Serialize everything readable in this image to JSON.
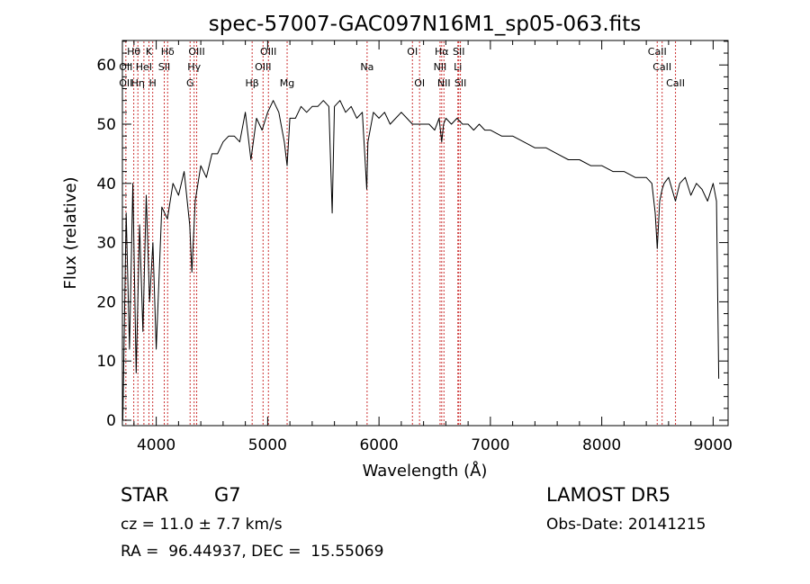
{
  "chart_data": {
    "type": "line",
    "title": "spec-57007-GAC097N16M1_sp05-063.fits",
    "xlabel": "Wavelength (Å)",
    "ylabel": "Flux (relative)",
    "xlim": [
      3700,
      9100
    ],
    "ylim": [
      0,
      65
    ],
    "xticks": [
      4000,
      5000,
      6000,
      7000,
      8000,
      9000
    ],
    "yticks": [
      0,
      10,
      20,
      30,
      40,
      50,
      60
    ],
    "grid": false,
    "series": [
      {
        "x": [
          3700,
          3730,
          3760,
          3790,
          3820,
          3850,
          3880,
          3910,
          3940,
          3970,
          4000,
          4050,
          4100,
          4150,
          4200,
          4250,
          4300,
          4320,
          4350,
          4400,
          4450,
          4500,
          4550,
          4600,
          4650,
          4700,
          4750,
          4800,
          4850,
          4900,
          4950,
          5000,
          5050,
          5100,
          5150,
          5175,
          5200,
          5250,
          5300,
          5350,
          5400,
          5450,
          5500,
          5550,
          5580,
          5600,
          5650,
          5700,
          5750,
          5800,
          5850,
          5890,
          5900,
          5950,
          6000,
          6050,
          6100,
          6150,
          6200,
          6250,
          6300,
          6350,
          6400,
          6450,
          6500,
          6540,
          6563,
          6580,
          6600,
          6650,
          6700,
          6750,
          6800,
          6850,
          6900,
          6950,
          7000,
          7100,
          7200,
          7300,
          7400,
          7500,
          7600,
          7700,
          7800,
          7900,
          8000,
          8100,
          8200,
          8300,
          8400,
          8450,
          8480,
          8498,
          8520,
          8542,
          8560,
          8600,
          8662,
          8700,
          8750,
          8800,
          8850,
          8900,
          8950,
          9000,
          9030,
          9050
        ],
        "y": [
          0,
          35,
          12,
          40,
          8,
          33,
          15,
          38,
          20,
          30,
          12,
          36,
          34,
          40,
          38,
          42,
          33,
          25,
          37,
          43,
          41,
          45,
          45,
          47,
          48,
          48,
          47,
          52,
          44,
          51,
          49,
          52,
          54,
          52,
          47,
          43,
          51,
          51,
          53,
          52,
          53,
          53,
          54,
          53,
          35,
          53,
          54,
          52,
          53,
          51,
          52,
          39,
          47,
          52,
          51,
          52,
          50,
          51,
          52,
          51,
          50,
          50,
          50,
          50,
          49,
          51,
          47,
          50,
          51,
          50,
          51,
          50,
          50,
          49,
          50,
          49,
          49,
          48,
          48,
          47,
          46,
          46,
          45,
          44,
          44,
          43,
          43,
          42,
          42,
          41,
          41,
          40,
          35,
          29,
          37,
          39,
          40,
          41,
          37,
          40,
          41,
          38,
          40,
          39,
          37,
          40,
          37,
          7
        ]
      }
    ],
    "line_labels": [
      {
        "label": "Hθ",
        "x": 3798,
        "row": 0
      },
      {
        "label": "K",
        "x": 3934,
        "row": 0
      },
      {
        "label": "Hδ",
        "x": 4102,
        "row": 0
      },
      {
        "label": "OIII",
        "x": 4363,
        "row": 0
      },
      {
        "label": "OIII",
        "x": 5007,
        "row": 0
      },
      {
        "label": "OI",
        "x": 6300,
        "row": 0
      },
      {
        "label": "Hα",
        "x": 6563,
        "row": 0
      },
      {
        "label": "SII",
        "x": 6716,
        "row": 0
      },
      {
        "label": "CaII",
        "x": 8498,
        "row": 0
      },
      {
        "label": "OII",
        "x": 3727,
        "row": 1
      },
      {
        "label": "HeI",
        "x": 3889,
        "row": 1
      },
      {
        "label": "SII",
        "x": 4072,
        "row": 1
      },
      {
        "label": "Hγ",
        "x": 4340,
        "row": 1
      },
      {
        "label": "OIII",
        "x": 4959,
        "row": 1
      },
      {
        "label": "Na",
        "x": 5893,
        "row": 1
      },
      {
        "label": "NII",
        "x": 6548,
        "row": 1
      },
      {
        "label": "Li",
        "x": 6708,
        "row": 1
      },
      {
        "label": "CaII",
        "x": 8542,
        "row": 1
      },
      {
        "label": "OII",
        "x": 3727,
        "row": 2
      },
      {
        "label": "Hη",
        "x": 3835,
        "row": 2
      },
      {
        "label": "H",
        "x": 3968,
        "row": 2
      },
      {
        "label": "G",
        "x": 4304,
        "row": 2
      },
      {
        "label": "Hβ",
        "x": 4861,
        "row": 2
      },
      {
        "label": "Mg",
        "x": 5175,
        "row": 2
      },
      {
        "label": "OI",
        "x": 6364,
        "row": 2
      },
      {
        "label": "NII",
        "x": 6583,
        "row": 2
      },
      {
        "label": "SII",
        "x": 6731,
        "row": 2
      },
      {
        "label": "CaII",
        "x": 8662,
        "row": 2
      }
    ]
  },
  "footer": {
    "class_label": "STAR",
    "subclass": "G7",
    "survey": "LAMOST DR5",
    "cz": "cz = 11.0 ± 7.7 km/s",
    "obs_date": "Obs-Date: 20141215",
    "radec": "RA =  96.44937, DEC =  15.55069"
  },
  "colors": {
    "line": "#000000",
    "marker": "#cc3333",
    "background": "#ffffff"
  }
}
